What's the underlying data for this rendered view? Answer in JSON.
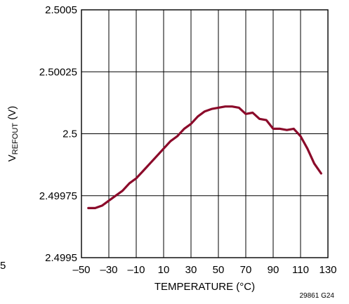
{
  "chart_data": {
    "type": "line",
    "xlabel": "TEMPERATURE (°C)",
    "ylabel_main": "V",
    "ylabel_sub": "REFOUT",
    "ylabel_unit": " (V)",
    "xlim": [
      -50,
      130
    ],
    "ylim": [
      2.4995,
      2.5005
    ],
    "x_ticks": [
      -50,
      -30,
      -10,
      10,
      30,
      50,
      70,
      90,
      110,
      130
    ],
    "x_tick_labels": [
      "–50",
      "–30",
      "–10",
      "10",
      "30",
      "50",
      "70",
      "90",
      "110",
      "130"
    ],
    "y_ticks": [
      2.4995,
      2.49975,
      2.5,
      2.50025,
      2.5005
    ],
    "y_tick_labels": [
      "2.4995",
      "2.49975",
      "2.5",
      "2.50025",
      "2.5005"
    ],
    "grid": true,
    "line_color": "#8b0a2a",
    "series": [
      {
        "x": [
          -45,
          -40,
          -35,
          -30,
          -25,
          -20,
          -15,
          -10,
          -5,
          0,
          5,
          10,
          15,
          20,
          25,
          30,
          35,
          40,
          45,
          50,
          55,
          60,
          65,
          70,
          75,
          80,
          85,
          90,
          95,
          100,
          105,
          110,
          115,
          120,
          125
        ],
        "values": [
          2.4997,
          2.4997,
          2.49971,
          2.49973,
          2.49975,
          2.49977,
          2.4998,
          2.49982,
          2.49985,
          2.49988,
          2.49991,
          2.49994,
          2.49997,
          2.49999,
          2.50002,
          2.50004,
          2.50007,
          2.50009,
          2.5001,
          2.500105,
          2.50011,
          2.50011,
          2.500105,
          2.50008,
          2.500085,
          2.50006,
          2.500055,
          2.50002,
          2.50002,
          2.500015,
          2.50002,
          2.49999,
          2.49994,
          2.49988,
          2.49984
        ]
      }
    ],
    "figure_code": "29861 G24",
    "left_edge_fragment": "5"
  }
}
